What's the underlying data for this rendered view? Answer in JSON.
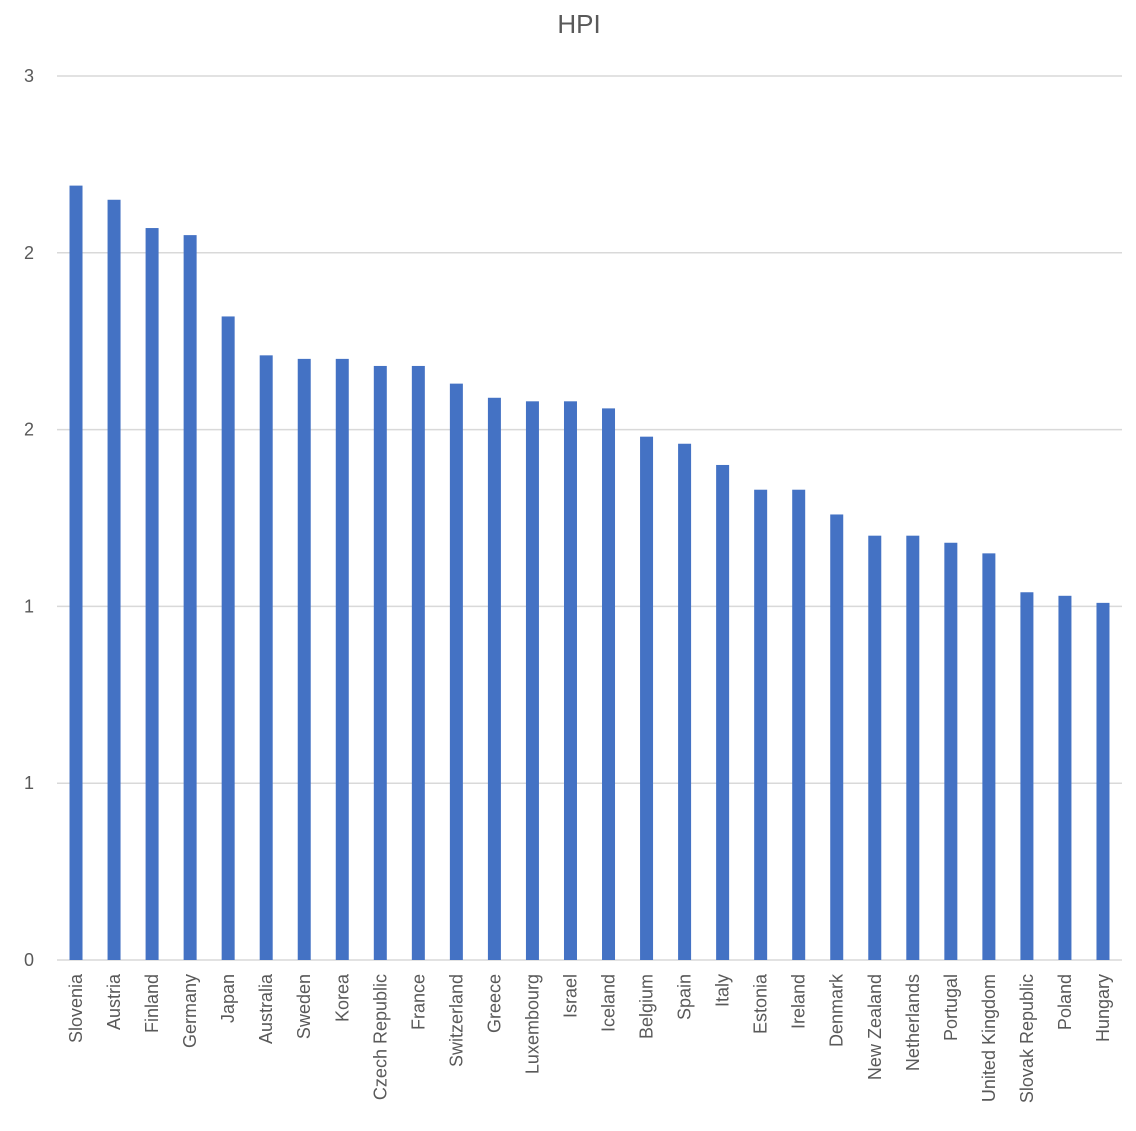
{
  "chart_data": {
    "type": "bar",
    "title": "HPI",
    "xlabel": "",
    "ylabel": "",
    "ylim": [
      0,
      2.5
    ],
    "y_ticks": [
      0,
      0.5,
      1,
      1.5,
      2,
      2.5
    ],
    "y_tick_labels": [
      "0",
      "1",
      "1",
      "2",
      "2",
      "3"
    ],
    "grid": true,
    "legend": "none",
    "bar_color": "#4472C4",
    "categories": [
      "Slovenia",
      "Austria",
      "Finland",
      "Germany",
      "Japan",
      "Australia",
      "Sweden",
      "Korea",
      "Czech Republic",
      "France",
      "Switzerland",
      "Greece",
      "Luxembourg",
      "Israel",
      "Iceland",
      "Belgium",
      "Spain",
      "Italy",
      "Estonia",
      "Ireland",
      "Denmark",
      "New Zealand",
      "Netherlands",
      "Portugal",
      "United Kingdom",
      "Slovak Republic",
      "Poland",
      "Hungary"
    ],
    "values": [
      2.19,
      2.15,
      2.07,
      2.05,
      1.82,
      1.71,
      1.7,
      1.7,
      1.68,
      1.68,
      1.63,
      1.59,
      1.58,
      1.58,
      1.56,
      1.48,
      1.46,
      1.4,
      1.33,
      1.33,
      1.26,
      1.2,
      1.2,
      1.18,
      1.15,
      1.04,
      1.03,
      1.01
    ]
  }
}
